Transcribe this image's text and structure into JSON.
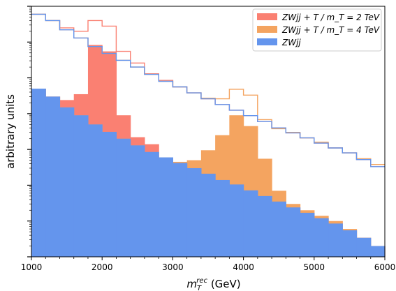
{
  "chart_data": {
    "type": "bar",
    "histogram": true,
    "log_y": true,
    "xlabel": "m_T^rec (GeV)",
    "ylabel": "arbitrary units",
    "xlim": [
      1000,
      6000
    ],
    "ylim": [
      1e-07,
      1
    ],
    "grid": false,
    "legend_position": "top-right",
    "x_ticks": [
      "1000",
      "2000",
      "3000",
      "4000",
      "5000",
      "6000"
    ],
    "bin_edges": [
      1000,
      1200,
      1400,
      1600,
      1800,
      2000,
      2200,
      2400,
      2600,
      2800,
      3000,
      3200,
      3400,
      3600,
      3800,
      4000,
      4200,
      4400,
      4600,
      4800,
      5000,
      5200,
      5400,
      5600,
      5800,
      6000
    ],
    "series": [
      {
        "name": "ZWjj",
        "legend_label": "ZWjj",
        "color": "#6495ed",
        "filled_values": [
          0.005,
          0.003,
          0.0015,
          0.0009,
          0.0005,
          0.00031,
          0.0002,
          0.00013,
          8.5e-05,
          6e-05,
          4.2e-05,
          3e-05,
          2.1e-05,
          1.4e-05,
          1.05e-05,
          7.2e-06,
          5e-06,
          3.5e-06,
          2.4e-06,
          1.7e-06,
          1.2e-06,
          8.5e-07,
          5.5e-07,
          3.4e-07,
          2e-07
        ],
        "outline_values": [
          0.6,
          0.4,
          0.22,
          0.13,
          0.075,
          0.048,
          0.031,
          0.02,
          0.0125,
          0.008,
          0.0056,
          0.0038,
          0.0026,
          0.0018,
          0.00125,
          0.00088,
          0.0006,
          0.0004,
          0.00029,
          0.00021,
          0.00015,
          0.00011,
          8e-05,
          5.2e-05,
          3.3e-05
        ]
      },
      {
        "name": "ZWjj + T / m_T = 2 TeV",
        "legend_label": "ZWjj + T / m_T = 2 TeV",
        "color": "#fa8072",
        "filled_values": [
          0.005,
          0.003,
          0.0024,
          0.0035,
          0.083,
          0.055,
          0.0009,
          0.00022,
          0.00014,
          6e-05,
          4.2e-05,
          3e-05,
          2.1e-05,
          1.4e-05,
          1.05e-05,
          7.2e-06,
          5e-06,
          3.5e-06,
          2.4e-06,
          1.7e-06,
          1.2e-06,
          8.5e-07,
          5.5e-07,
          3.4e-07,
          2e-07
        ],
        "outline_values": [
          0.6,
          0.4,
          0.25,
          0.2,
          0.4,
          0.28,
          0.055,
          0.026,
          0.013,
          0.0085,
          0.0056,
          0.0038,
          0.0026,
          0.0018,
          0.00125,
          0.00088,
          0.0006,
          0.0004,
          0.00029,
          0.00021,
          0.00015,
          0.00011,
          8e-05,
          5.2e-05,
          3.3e-05
        ]
      },
      {
        "name": "ZWjj + T / m_T = 4 TeV",
        "legend_label": "ZWjj + T / m_T = 4 TeV",
        "color": "#f4a460",
        "filled_values": [
          0.005,
          0.003,
          0.0015,
          0.0009,
          0.0005,
          0.00031,
          0.0002,
          0.00013,
          8.5e-05,
          6e-05,
          4.5e-05,
          5e-05,
          9.5e-05,
          0.00025,
          0.0009,
          0.00045,
          5.5e-05,
          7e-06,
          3e-06,
          2e-06,
          1.4e-06,
          1e-06,
          6e-07,
          3.4e-07,
          2e-07
        ],
        "outline_values": [
          0.6,
          0.4,
          0.22,
          0.13,
          0.075,
          0.048,
          0.031,
          0.02,
          0.0125,
          0.008,
          0.0056,
          0.0038,
          0.0027,
          0.0026,
          0.0048,
          0.0033,
          0.00068,
          0.00038,
          0.0003,
          0.00021,
          0.00016,
          0.00011,
          8e-05,
          5.5e-05,
          3.8e-05
        ]
      }
    ],
    "legend_order": [
      1,
      2,
      0
    ]
  }
}
